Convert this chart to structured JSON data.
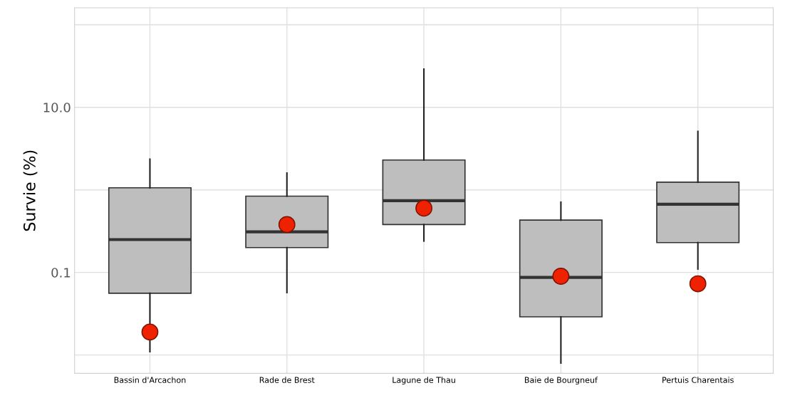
{
  "chart_data": {
    "type": "box",
    "ylabel": "Survie (%)",
    "log": "y",
    "grid": true,
    "categories": [
      "Bassin d'Arcachon",
      "Rade de Brest",
      "Lagune de Thau",
      "Baie de Bourgneuf",
      "Pertuis Charentais"
    ],
    "color": "#bebebe",
    "boxes": [
      {
        "low": 0.011,
        "q1": 0.056,
        "median": 0.25,
        "q3": 1.06,
        "high": 2.35
      },
      {
        "low": 0.057,
        "q1": 0.2,
        "median": 0.31,
        "q3": 0.84,
        "high": 1.6
      },
      {
        "low": 0.24,
        "q1": 0.38,
        "median": 0.74,
        "q3": 2.3,
        "high": 29
      },
      {
        "low": 0.008,
        "q1": 0.029,
        "median": 0.087,
        "q3": 0.43,
        "high": 0.71
      },
      {
        "low": 0.11,
        "q1": 0.23,
        "median": 0.67,
        "q3": 1.24,
        "high": 5.1
      }
    ],
    "series": [
      {
        "type": "scatter",
        "color": "#ee2200",
        "x": [
          "Bassin d'Arcachon",
          "Rade de Brest",
          "Lagune de Thau",
          "Baie de Bourgneuf",
          "Pertuis Charentais"
        ],
        "values": [
          0.019,
          0.38,
          0.6,
          0.09,
          0.073
        ]
      }
    ],
    "marker": "circle",
    "ylim": [
      0.006,
      160
    ],
    "yticks": [
      {
        "value": 0.01,
        "label": null
      },
      {
        "value": 0.1,
        "label": "0.1"
      },
      {
        "value": 1,
        "label": null
      },
      {
        "value": 10,
        "label": "10.0"
      },
      {
        "value": 100,
        "label": null
      }
    ]
  }
}
